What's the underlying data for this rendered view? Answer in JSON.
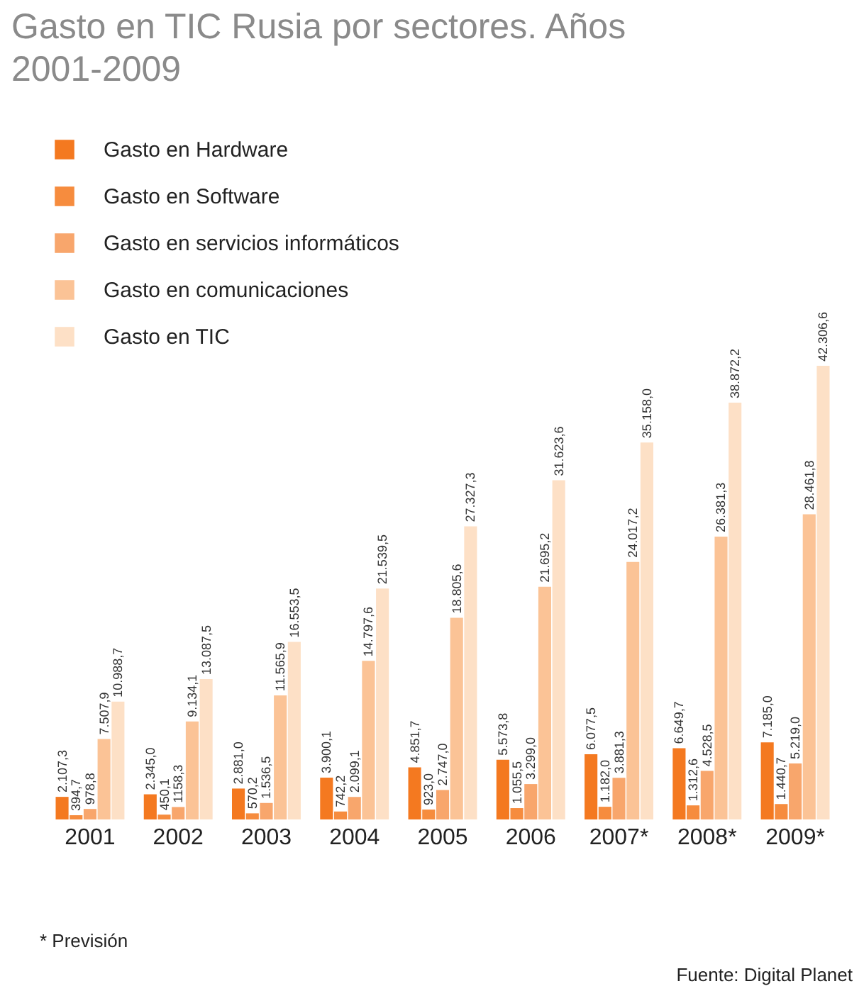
{
  "chart_data": {
    "type": "bar",
    "title": "Gasto en TIC Rusia por sectores. Años 2001-2009",
    "categories": [
      "2001",
      "2002",
      "2003",
      "2004",
      "2005",
      "2006",
      "2007*",
      "2008*",
      "2009*"
    ],
    "series": [
      {
        "name": "Gasto en Hardware",
        "color": "#f47920",
        "values": [
          2107.3,
          2345.0,
          2881.0,
          3900.1,
          4851.7,
          5573.8,
          6077.5,
          6649.7,
          7185.0
        ],
        "value_labels": [
          "2.107,3",
          "2.345,0",
          "2.881,0",
          "3.900,1",
          "4.851,7",
          "5.573,8",
          "6.077,5",
          "6.649,7",
          "7.185,0"
        ]
      },
      {
        "name": "Gasto en Software",
        "color": "#f68c3e",
        "values": [
          394.7,
          450.1,
          570.2,
          742.2,
          923.0,
          1055.5,
          1182.0,
          1312.6,
          1440.7
        ],
        "value_labels": [
          "394,7",
          "450,1",
          "570,2",
          "742,2",
          "923,0",
          "1.055,5",
          "1.182,0",
          "1.312,6",
          "1.440,7"
        ]
      },
      {
        "name": "Gasto en servicios informáticos",
        "color": "#f8a66c",
        "values": [
          978.8,
          1158.3,
          1536.5,
          2099.1,
          2747.0,
          3299.0,
          3881.3,
          4528.5,
          5219.0
        ],
        "value_labels": [
          "978,8",
          "1158,3",
          "1.536,5",
          "2.099,1",
          "2.747,0",
          "3.299,0",
          "3.881,3",
          "4.528,5",
          "5.219,0"
        ]
      },
      {
        "name": "Gasto en comunicaciones",
        "color": "#fbc396",
        "values": [
          7507.9,
          9134.1,
          11565.9,
          14797.6,
          18805.6,
          21695.2,
          24017.2,
          26381.3,
          28461.8
        ],
        "value_labels": [
          "7.507,9",
          "9.134,1",
          "11.565,9",
          "14.797,6",
          "18.805,6",
          "21.695,2",
          "24.017,2",
          "26.381,3",
          "28.461,8"
        ]
      },
      {
        "name": "Gasto en TIC",
        "color": "#fde0c6",
        "values": [
          10988.7,
          13087.5,
          16553.5,
          21539.5,
          27327.3,
          31623.6,
          35158.0,
          38872.2,
          42306.6
        ],
        "value_labels": [
          "10.988,7",
          "13.087,5",
          "16.553,5",
          "21.539,5",
          "27.327,3",
          "31.623,6",
          "35.158,0",
          "38.872,2",
          "42.306,6"
        ]
      }
    ],
    "legend": "top left",
    "annotations": [
      "* Previsión",
      "Fuente: Digital Planet"
    ]
  }
}
